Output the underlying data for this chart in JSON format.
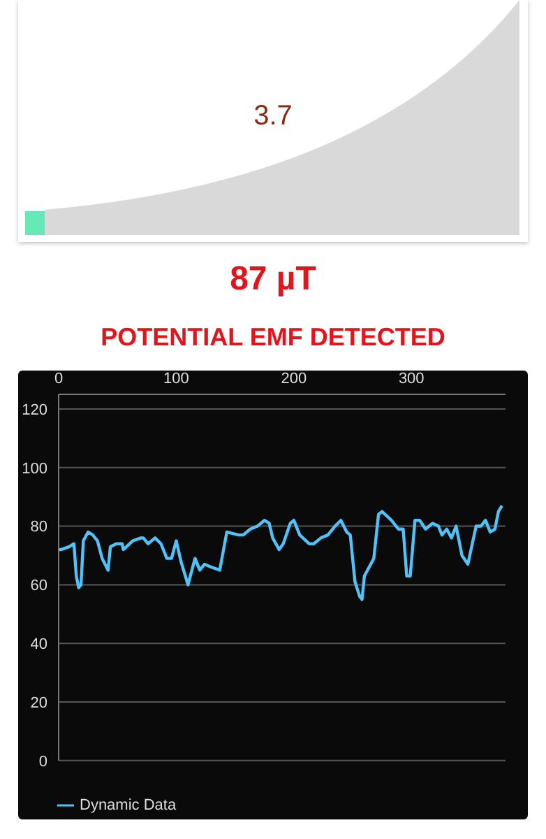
{
  "chart_data": [
    {
      "type": "other",
      "title": "87 µT",
      "subtitle": "POTENTIAL EMF DETECTED",
      "annotations": [
        "3.7"
      ]
    },
    {
      "type": "line",
      "x": [
        0,
        2,
        9,
        13,
        15,
        17,
        19,
        21,
        25,
        29,
        33,
        37,
        42,
        44,
        49,
        54,
        55,
        63,
        70,
        72,
        76,
        82,
        87,
        92,
        96,
        100,
        104,
        110,
        116,
        120,
        124,
        130,
        137,
        143,
        153,
        157,
        163,
        169,
        175,
        179,
        182,
        187.5,
        191,
        197,
        200,
        205,
        213,
        217,
        223,
        229,
        235,
        240,
        245,
        248,
        252,
        256,
        258,
        260,
        268,
        272,
        275,
        283,
        289,
        293,
        296,
        299,
        303,
        307,
        312,
        318,
        323,
        326,
        330,
        334,
        338,
        343,
        348,
        355,
        359,
        363,
        367,
        371,
        374,
        377
      ],
      "series": [
        {
          "name": "Dynamic Data",
          "color": "#4fc3f7",
          "values": [
            72,
            72,
            73,
            74,
            63,
            59,
            60,
            75,
            78,
            77,
            75,
            69,
            65,
            73,
            74,
            74,
            72,
            75,
            76,
            76,
            74,
            76,
            74,
            69,
            69,
            75,
            68,
            60,
            69,
            65,
            67,
            66,
            65,
            78,
            77,
            77,
            79,
            80,
            82,
            81,
            76,
            72,
            74,
            81,
            82,
            77,
            74,
            74,
            76,
            77,
            80,
            82,
            78,
            77,
            61,
            56,
            55,
            63,
            69,
            84,
            85,
            82,
            79,
            79,
            63,
            63,
            82,
            82,
            79,
            81,
            80,
            77,
            79,
            76,
            80,
            70,
            67,
            80,
            80,
            82,
            78,
            79,
            85,
            87
          ]
        }
      ],
      "xlim": [
        0,
        380
      ],
      "xticks": [
        0,
        100,
        200,
        300
      ],
      "ylim": [
        0,
        125
      ],
      "yticks": [
        0,
        20,
        40,
        60,
        80,
        100,
        120
      ],
      "grid": "y",
      "legend": "bottom left",
      "marker": "none",
      "line_style": "solid"
    }
  ]
}
